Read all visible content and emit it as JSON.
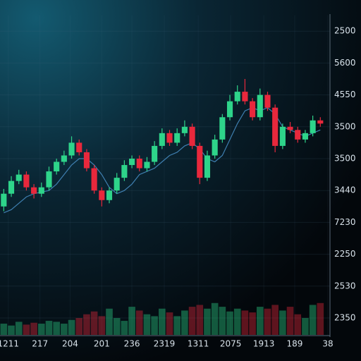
{
  "chart_data": {
    "type": "candlestick",
    "up_color": "#2ed48a",
    "down_color": "#e8283c",
    "ma_color": "#3f7fb0",
    "grid": true,
    "xlim": [
      -0.5,
      43
    ],
    "xticks": [
      {
        "value": 0.6,
        "label": "1211"
      },
      {
        "value": 4.8,
        "label": "217"
      },
      {
        "value": 8.8,
        "label": "204"
      },
      {
        "value": 13,
        "label": "201"
      },
      {
        "value": 17,
        "label": "236"
      },
      {
        "value": 21.3,
        "label": "2319"
      },
      {
        "value": 25.8,
        "label": "1311"
      },
      {
        "value": 30.1,
        "label": "2075"
      },
      {
        "value": 34.5,
        "label": "1913"
      },
      {
        "value": 38.6,
        "label": "189"
      },
      {
        "value": 43,
        "label": "38"
      }
    ],
    "ylim": [
      -0.5,
      9.5
    ],
    "yticks": [
      {
        "value": 9,
        "label": "2500"
      },
      {
        "value": 8,
        "label": "5600"
      },
      {
        "value": 7,
        "label": "4550"
      },
      {
        "value": 6,
        "label": "3500"
      },
      {
        "value": 5,
        "label": "3500"
      },
      {
        "value": 4,
        "label": "3440"
      },
      {
        "value": 3,
        "label": "7230"
      },
      {
        "value": 2,
        "label": "2250"
      },
      {
        "value": 1,
        "label": "2530"
      },
      {
        "value": 0,
        "label": "2350"
      }
    ],
    "y2lim": [
      0,
      100
    ],
    "open": [
      3.5,
      3.9,
      4.3,
      4.5,
      4.1,
      3.9,
      4.1,
      4.6,
      4.9,
      5.1,
      5.5,
      5.2,
      4.7,
      4.0,
      3.7,
      4.0,
      4.4,
      4.8,
      5.0,
      4.7,
      4.9,
      5.4,
      5.8,
      5.5,
      5.8,
      6.0,
      5.4,
      4.4,
      5.1,
      5.6,
      6.3,
      6.8,
      7.1,
      6.8,
      6.3,
      7.0,
      6.6,
      5.4,
      6.0,
      5.9,
      5.6,
      5.8,
      6.2
    ],
    "close": [
      3.9,
      4.3,
      4.5,
      4.1,
      3.9,
      4.1,
      4.6,
      4.9,
      5.1,
      5.5,
      5.2,
      4.7,
      4.0,
      3.7,
      4.0,
      4.4,
      4.8,
      5.0,
      4.7,
      4.9,
      5.4,
      5.8,
      5.5,
      5.8,
      6.0,
      5.4,
      4.4,
      5.1,
      5.6,
      6.3,
      6.8,
      7.1,
      6.8,
      6.3,
      7.0,
      6.6,
      5.4,
      6.0,
      5.9,
      5.6,
      5.8,
      6.2,
      6.1
    ],
    "high": [
      4.05,
      4.45,
      4.65,
      4.6,
      4.2,
      4.25,
      4.75,
      5.0,
      5.25,
      5.7,
      5.6,
      5.3,
      4.8,
      4.1,
      4.1,
      4.55,
      4.95,
      5.1,
      5.1,
      5.05,
      5.55,
      5.95,
      5.9,
      5.95,
      6.2,
      6.1,
      5.5,
      5.25,
      5.75,
      6.4,
      7.0,
      7.3,
      7.5,
      6.9,
      7.2,
      7.1,
      6.7,
      6.1,
      6.15,
      6.0,
      5.9,
      6.35,
      6.3
    ],
    "low": [
      3.35,
      3.8,
      4.2,
      4.0,
      3.75,
      3.8,
      4.0,
      4.5,
      4.8,
      5.0,
      5.1,
      4.6,
      3.9,
      3.5,
      3.6,
      3.9,
      4.3,
      4.7,
      4.6,
      4.6,
      4.8,
      5.3,
      5.4,
      5.4,
      5.7,
      5.3,
      4.2,
      4.3,
      5.0,
      5.5,
      6.2,
      6.7,
      6.7,
      6.2,
      6.2,
      6.5,
      5.2,
      5.3,
      5.8,
      5.5,
      5.5,
      5.7,
      6.0
    ],
    "ma": [
      3.3,
      3.4,
      3.6,
      3.8,
      3.9,
      3.95,
      4.0,
      4.2,
      4.5,
      4.8,
      5.0,
      5.0,
      4.8,
      4.5,
      4.1,
      3.9,
      4.0,
      4.2,
      4.5,
      4.6,
      4.7,
      4.9,
      5.1,
      5.2,
      5.4,
      5.5,
      5.3,
      5.0,
      4.9,
      5.1,
      5.6,
      6.1,
      6.5,
      6.6,
      6.5,
      6.6,
      6.4,
      6.0,
      5.9,
      5.8,
      5.7,
      5.8,
      5.9
    ],
    "volume": [
      12,
      10,
      14,
      11,
      13,
      12,
      15,
      14,
      12,
      16,
      18,
      22,
      25,
      20,
      28,
      18,
      15,
      30,
      26,
      22,
      20,
      28,
      24,
      20,
      26,
      30,
      32,
      28,
      34,
      30,
      25,
      28,
      26,
      24,
      30,
      28,
      32,
      26,
      30,
      22,
      18,
      32,
      34
    ]
  }
}
